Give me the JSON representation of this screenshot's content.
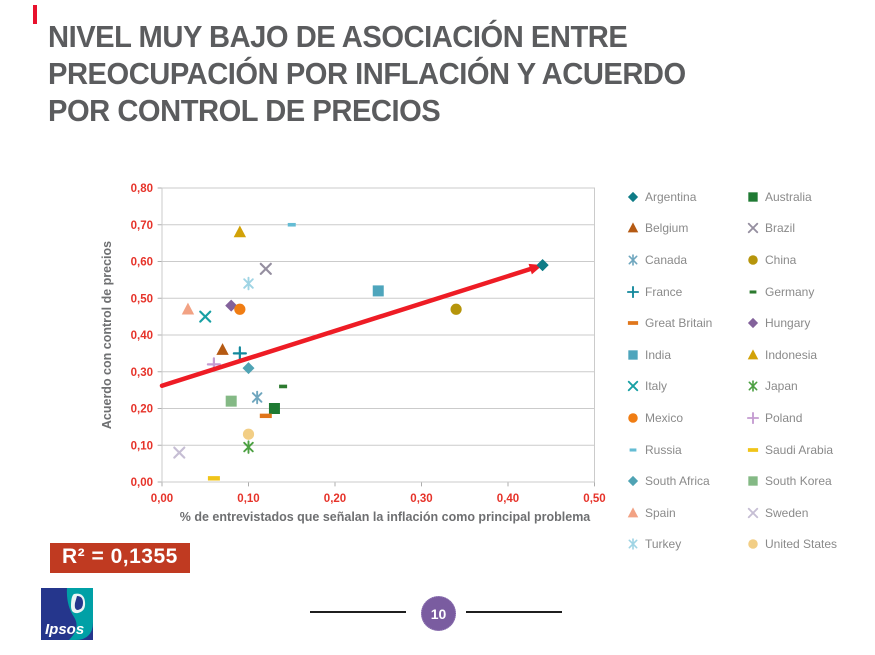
{
  "slide": {
    "accent_color": "#E8112D",
    "title_lines": [
      "NIVEL MUY BAJO DE ASOCIACIÓN ENTRE",
      "PREOCUPACIÓN POR INFLACIÓN Y ACUERDO",
      "POR CONTROL DE PRECIOS"
    ],
    "r_squared": "R² = 0,1355",
    "page_number": "10",
    "logo_text": "Ipsos"
  },
  "chart_data": {
    "type": "scatter",
    "title": "",
    "xlabel": "% de entrevistados que señalan la inflación como principal problema",
    "ylabel": "Acuerdo con control de precios",
    "xlim": [
      0.0,
      0.5
    ],
    "ylim": [
      0.0,
      0.8
    ],
    "x_ticks": [
      "0,00",
      "0,10",
      "0,20",
      "0,30",
      "0,40",
      "0,50"
    ],
    "y_ticks": [
      "0,00",
      "0,10",
      "0,20",
      "0,30",
      "0,40",
      "0,50",
      "0,60",
      "0,70",
      "0,80"
    ],
    "grid": "horizontal",
    "legend_position": "right",
    "tick_color": "#E6332A",
    "axis_title_color": "#6E6F71",
    "grid_color": "#CBCBCB",
    "trend_line": {
      "x1": 0.0,
      "y1": 0.262,
      "x2": 0.44,
      "y2": 0.59,
      "color": "#EE1C25",
      "style": "arrow"
    },
    "series": [
      {
        "name": "Argentina",
        "marker": "diamond",
        "color": "#0F7C87",
        "x": 0.44,
        "y": 0.59
      },
      {
        "name": "Australia",
        "marker": "square",
        "color": "#1F7A33",
        "x": 0.13,
        "y": 0.2
      },
      {
        "name": "Belgium",
        "marker": "triangle",
        "color": "#B55A13",
        "x": 0.07,
        "y": 0.36
      },
      {
        "name": "Brazil",
        "marker": "x",
        "color": "#958FA0",
        "x": 0.12,
        "y": 0.58
      },
      {
        "name": "Canada",
        "marker": "asterisk",
        "color": "#6FA6BE",
        "x": 0.11,
        "y": 0.23
      },
      {
        "name": "China",
        "marker": "circle",
        "color": "#B6950B",
        "x": 0.34,
        "y": 0.47
      },
      {
        "name": "France",
        "marker": "plus",
        "color": "#12889C",
        "x": 0.09,
        "y": 0.35
      },
      {
        "name": "Germany",
        "marker": "dash_s",
        "color": "#2C7A2F",
        "x": 0.14,
        "y": 0.26
      },
      {
        "name": "Great Britain",
        "marker": "dash",
        "color": "#E0761B",
        "x": 0.12,
        "y": 0.18
      },
      {
        "name": "Hungary",
        "marker": "diamond",
        "color": "#83629B",
        "x": 0.08,
        "y": 0.48
      },
      {
        "name": "India",
        "marker": "square",
        "color": "#4EA5BC",
        "x": 0.25,
        "y": 0.52
      },
      {
        "name": "Indonesia",
        "marker": "triangle",
        "color": "#D2A208",
        "x": 0.09,
        "y": 0.68
      },
      {
        "name": "Italy",
        "marker": "x",
        "color": "#18A0A4",
        "x": 0.05,
        "y": 0.45
      },
      {
        "name": "Japan",
        "marker": "asterisk",
        "color": "#4CA042",
        "x": 0.1,
        "y": 0.095
      },
      {
        "name": "Mexico",
        "marker": "circle",
        "color": "#F07D13",
        "x": 0.09,
        "y": 0.47
      },
      {
        "name": "Poland",
        "marker": "plus",
        "color": "#C49BD1",
        "x": 0.06,
        "y": 0.32
      },
      {
        "name": "Russia",
        "marker": "dash_s",
        "color": "#64BCD4",
        "x": 0.15,
        "y": 0.7
      },
      {
        "name": "Saudi Arabia",
        "marker": "dash",
        "color": "#F0C419",
        "x": 0.06,
        "y": 0.01
      },
      {
        "name": "South Africa",
        "marker": "diamond",
        "color": "#4FA3B4",
        "x": 0.1,
        "y": 0.31
      },
      {
        "name": "South Korea",
        "marker": "square",
        "color": "#84B985",
        "x": 0.08,
        "y": 0.22
      },
      {
        "name": "Spain",
        "marker": "triangle",
        "color": "#F2A284",
        "x": 0.03,
        "y": 0.47
      },
      {
        "name": "Sweden",
        "marker": "x",
        "color": "#C6BED4",
        "x": 0.02,
        "y": 0.08
      },
      {
        "name": "Turkey",
        "marker": "asterisk",
        "color": "#9FD4E4",
        "x": 0.1,
        "y": 0.54
      },
      {
        "name": "United States",
        "marker": "circle",
        "color": "#F2CE85",
        "x": 0.1,
        "y": 0.13
      }
    ]
  }
}
